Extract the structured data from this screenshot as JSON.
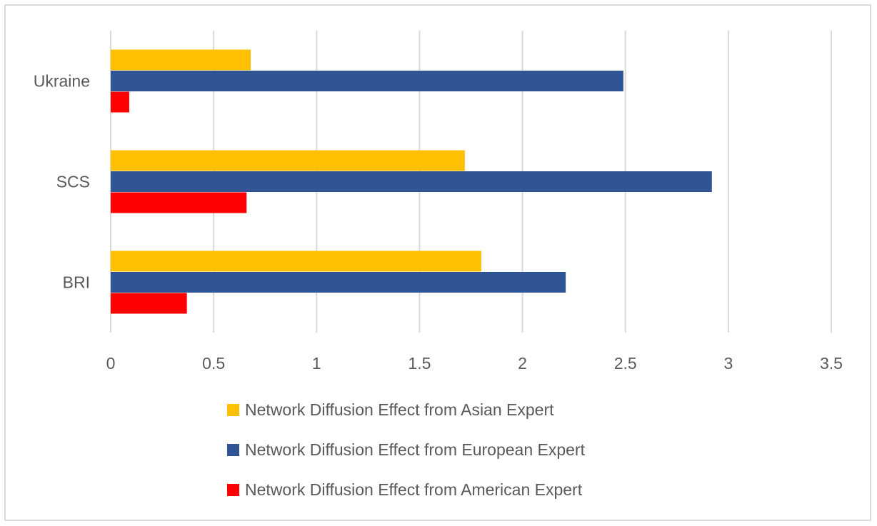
{
  "chart_data": {
    "type": "bar",
    "orientation": "horizontal",
    "title": "",
    "xlabel": "",
    "ylabel": "",
    "categories": [
      "BRI",
      "SCS",
      "Ukraine"
    ],
    "xlim": [
      0,
      3.5
    ],
    "x_ticks": [
      "0",
      "0.5",
      "1",
      "1.5",
      "2",
      "2.5",
      "3",
      "3.5"
    ],
    "grid": true,
    "legend_position": "bottom",
    "series": [
      {
        "name": "Network Diffusion Effect from Asian Expert",
        "color": "#FFC000",
        "values": [
          1.8,
          1.72,
          0.68
        ]
      },
      {
        "name": "Network Diffusion Effect from European Expert",
        "color": "#2F5597",
        "values": [
          2.21,
          2.92,
          2.49
        ]
      },
      {
        "name": "Network Diffusion Effect from American Expert",
        "color": "#FF0000",
        "values": [
          0.37,
          0.66,
          0.09
        ]
      }
    ]
  },
  "colors": {
    "gridline": "#d9d9d9",
    "text": "#595959",
    "frame": "#d9d9d9"
  }
}
